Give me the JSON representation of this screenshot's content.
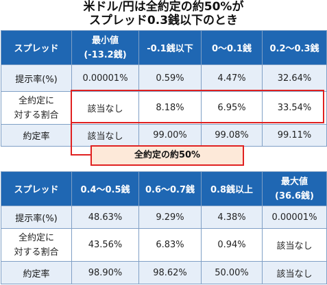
{
  "title": {
    "line1": "米ドル/円は全約定の約50%が",
    "line2": "スプレッド0.3銭以下のとき"
  },
  "table1": {
    "headers": [
      "スプレッド",
      "最小値",
      "(-13.2銭)",
      "-0.1銭以下",
      "0～0.1銭",
      "0.2～0.3銭"
    ],
    "rows": [
      {
        "label": "提示率(%)",
        "values": [
          "0.00001%",
          "0.59%",
          "4.47%",
          "32.64%"
        ]
      },
      {
        "label1": "全約定に",
        "label2": "対する割合",
        "values": [
          "該当なし",
          "8.18%",
          "6.95%",
          "33.54%"
        ]
      },
      {
        "label": "約定率",
        "values": [
          "該当なし",
          "99.00%",
          "99.08%",
          "99.11%"
        ]
      }
    ]
  },
  "callout": "全約定の約50%",
  "table2": {
    "headers": [
      "スプレッド",
      "0.4～0.5銭",
      "0.6～0.7銭",
      "0.8銭以上",
      "最大値",
      "(36.6銭)"
    ],
    "rows": [
      {
        "label": "提示率(%)",
        "values": [
          "48.63%",
          "9.29%",
          "4.38%",
          "0.00001%"
        ]
      },
      {
        "label1": "全約定に",
        "label2": "対する割合",
        "values": [
          "43.56%",
          "6.83%",
          "0.94%",
          "該当なし"
        ]
      },
      {
        "label": "約定率",
        "values": [
          "98.90%",
          "98.62%",
          "50.00%",
          "該当なし"
        ]
      }
    ]
  },
  "colors": {
    "header_bg": "#1f67b3",
    "band_bg": "#e6eef8",
    "highlight_border": "#e02020",
    "callout_bg": "#fde9d9"
  }
}
